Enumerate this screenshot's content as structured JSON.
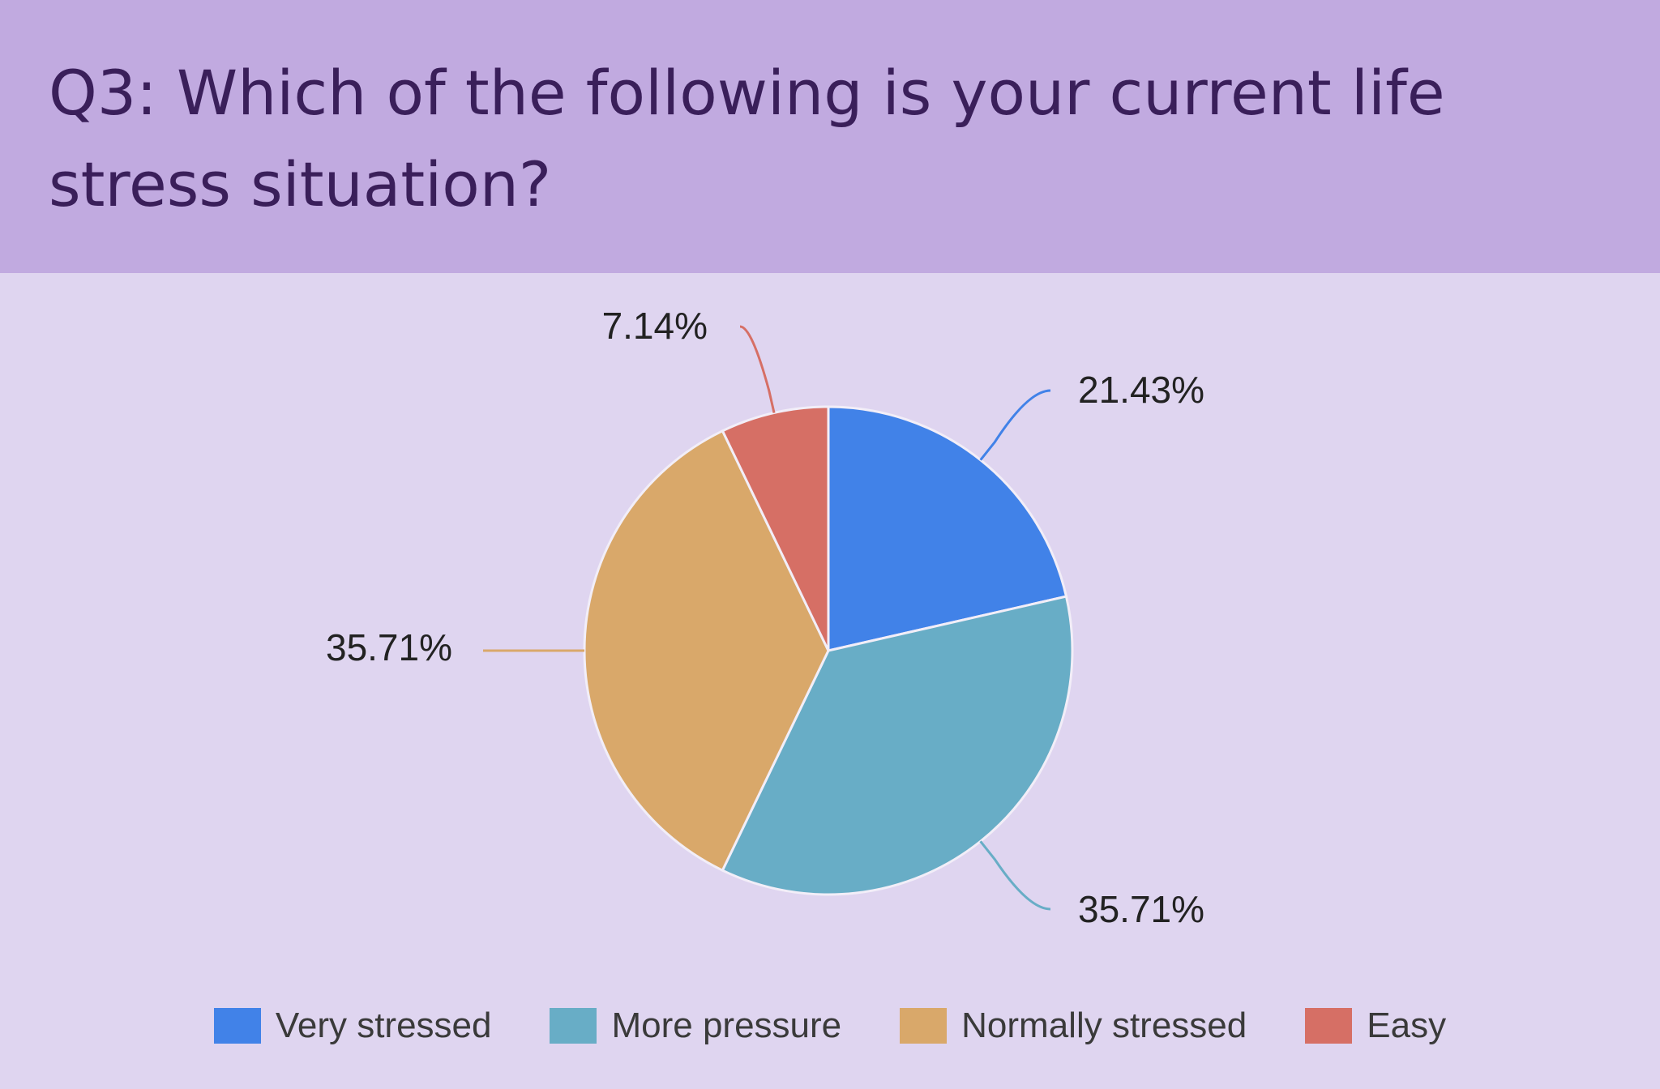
{
  "header": {
    "title": "Q3: Which of the following is your current life stress situation?"
  },
  "colors": {
    "header_bg": "#c1aae0",
    "chart_bg": "#dfd5f0",
    "title_text": "#3a1f5a"
  },
  "chart_data": {
    "type": "pie",
    "title": "Q3: Which of the following is your current life stress situation?",
    "legend_position": "bottom",
    "slices": [
      {
        "name": "Very stressed",
        "value": 21.43,
        "label": "21.43%",
        "color": "#4182e8"
      },
      {
        "name": "More pressure",
        "value": 35.71,
        "label": "35.71%",
        "color": "#68adc6"
      },
      {
        "name": "Normally stressed",
        "value": 35.71,
        "label": "35.71%",
        "color": "#d9a86a"
      },
      {
        "name": "Easy",
        "value": 7.14,
        "label": "7.14%",
        "color": "#d66f65"
      }
    ]
  }
}
